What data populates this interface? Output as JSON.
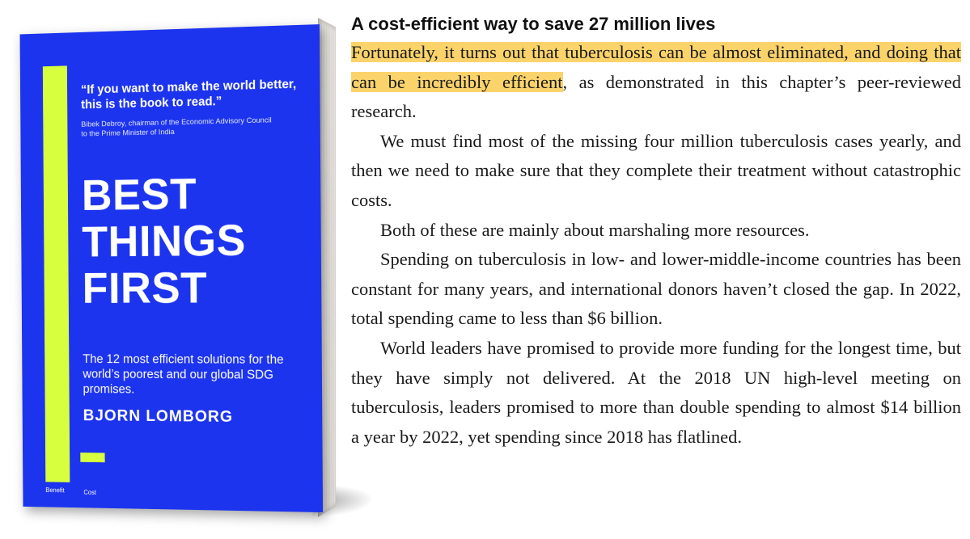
{
  "book": {
    "quote": "“If you want to make the world better, this is the book to read.”",
    "quote_attribution": "Bibek Debroy, chairman of the Economic Advisory Council to the Prime Minister of India",
    "title_lines": [
      "BEST",
      "THINGS",
      "FIRST"
    ],
    "subtitle": "The 12 most efficient solutions for the world’s poorest and our global SDG promises.",
    "author": "BJORN LOMBORG",
    "benefit_label": "Benefit",
    "cost_label": "Cost",
    "colors": {
      "cover": "#1c34ee",
      "accent": "#d8ff3e"
    }
  },
  "excerpt": {
    "heading": "A cost-efficient way to save 27 million lives",
    "p1_highlight": "Fortunately, it turns out that tuberculosis can be almost eliminated, and doing that can be incredibly efficient",
    "p1_rest": ", as demonstrated in this chapter’s peer-reviewed research.",
    "p2": "We must find most of the missing four million tuberculosis cases yearly, and then we need to make sure that they complete their treatment without catastrophic costs.",
    "p3": "Both of these are mainly about marshaling more resources.",
    "p4": "Spending on tuberculosis in low- and lower-middle-income countries has been constant for many years, and international donors haven’t closed the gap. In 2022, total spending came to less than $6 billion.",
    "p5": "World leaders have promised to provide more funding for the longest time, but they have simply not delivered. At the 2018 UN high-level meeting on tuberculosis, leaders promised to more than double spending to almost $14 billion a year by 2022, yet spending since 2018 has flatlined.",
    "highlight_color": "#fbd36b"
  }
}
